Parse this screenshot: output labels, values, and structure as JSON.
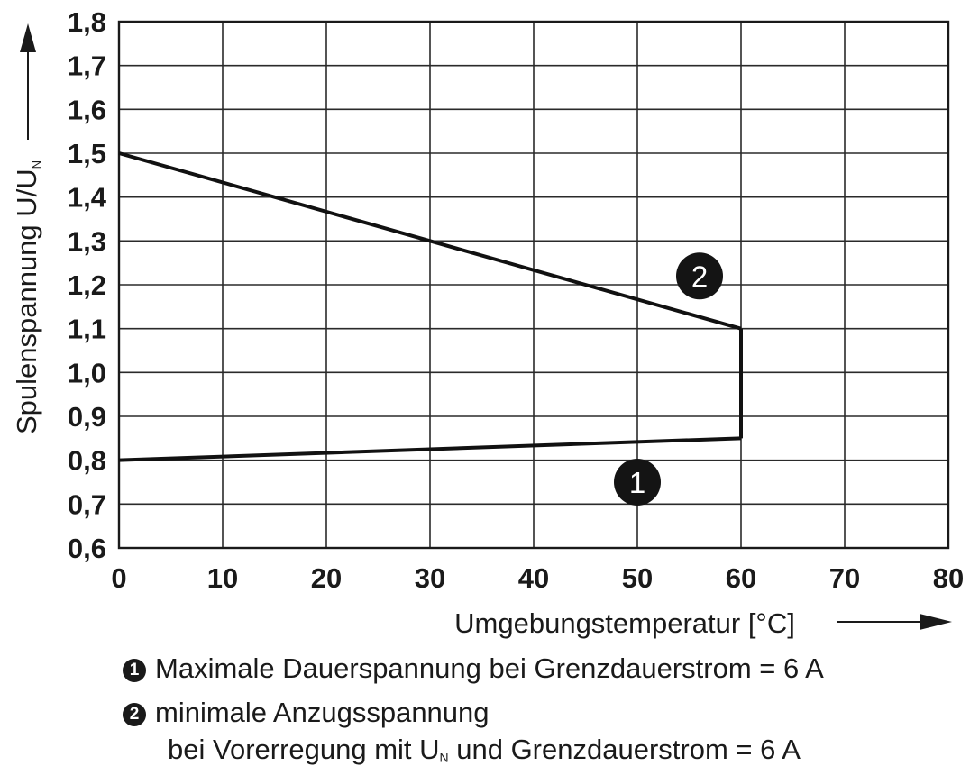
{
  "chart_data": {
    "type": "line",
    "xlabel": "Umgebungstemperatur [°C]",
    "ylabel_main": "Spulenspannung U/U",
    "ylabel_sub": "N",
    "xlim": [
      0,
      80
    ],
    "ylim": [
      0.6,
      1.8
    ],
    "x_ticks": [
      "0",
      "10",
      "20",
      "30",
      "40",
      "50",
      "60",
      "70",
      "80"
    ],
    "y_ticks": [
      "0,6",
      "0,7",
      "0,8",
      "0,9",
      "1,0",
      "1,1",
      "1,2",
      "1,3",
      "1,4",
      "1,5",
      "1,6",
      "1,7",
      "1,8"
    ],
    "grid": true,
    "series": [
      {
        "marker": "1",
        "x": [
          0,
          60
        ],
        "y": [
          0.8,
          0.85
        ]
      },
      {
        "marker": "2",
        "x": [
          0,
          60
        ],
        "y": [
          1.5,
          1.1
        ]
      }
    ],
    "connector": {
      "x": [
        60,
        60
      ],
      "y": [
        0.85,
        1.1
      ]
    },
    "annotations": [
      {
        "text": "1",
        "x": 50,
        "y": 0.75
      },
      {
        "text": "2",
        "x": 56,
        "y": 1.22
      }
    ]
  },
  "legend": {
    "item1_marker": "1",
    "item1_text": "Maximale Dauerspannung bei Grenzdauerstrom = 6 A",
    "item2_marker": "2",
    "item2_line1": "minimale Anzugsspannung",
    "item2_line2_pre": "bei Vorerregung mit U",
    "item2_line2_sub": "N",
    "item2_line2_post": " und Grenzdauerstrom = 6 A"
  }
}
